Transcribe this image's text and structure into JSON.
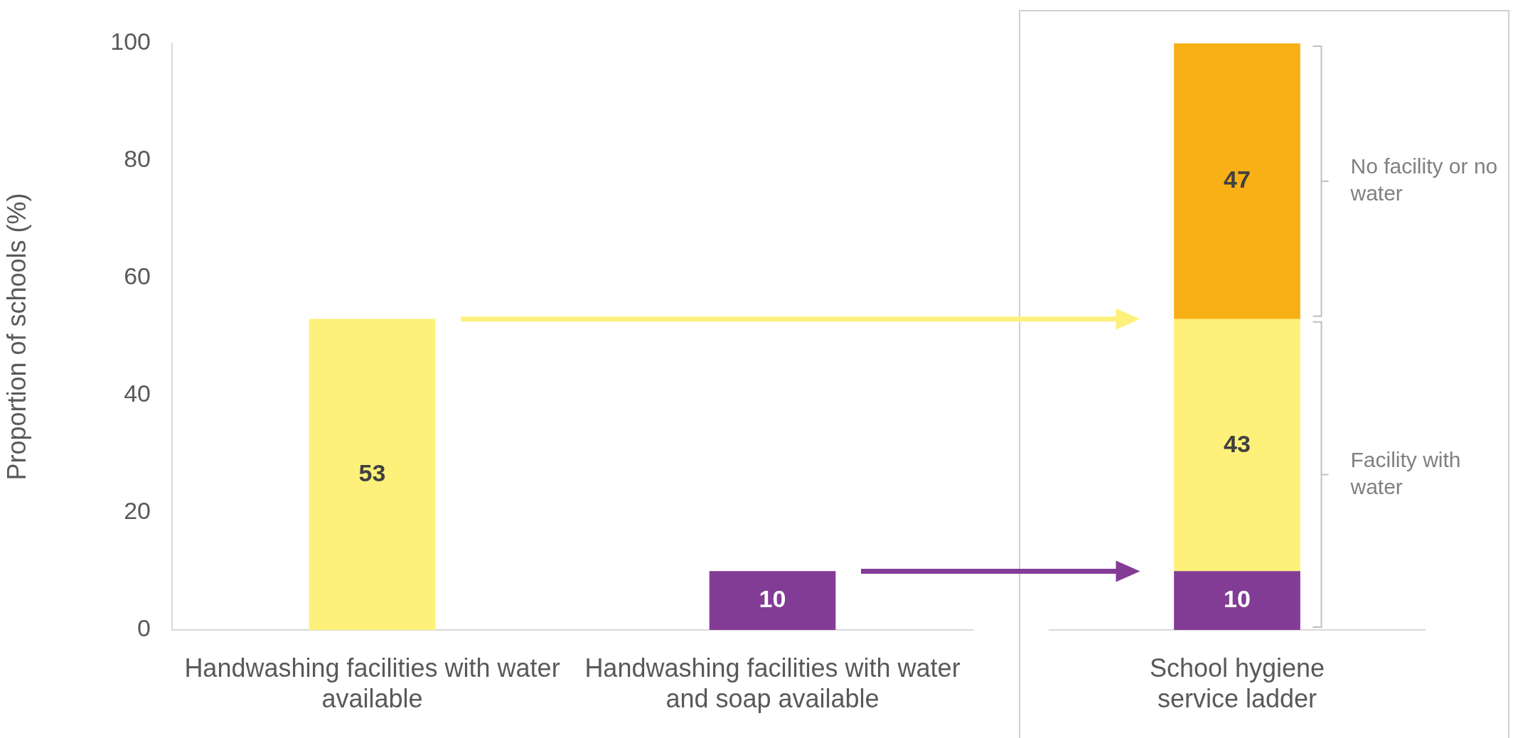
{
  "chart_data": [
    {
      "type": "bar",
      "ylabel": "Proportion of schools (%)",
      "categories": [
        "Handwashing facilities with water available",
        "Handwashing facilities with water and soap available"
      ],
      "values": [
        53,
        10
      ],
      "colors": [
        "#fef17b",
        "#833c96"
      ],
      "ylim": [
        0,
        100
      ],
      "yticks": [
        0,
        20,
        40,
        60,
        80,
        100
      ],
      "data_labels": true
    },
    {
      "type": "bar",
      "stacked": true,
      "categories": [
        "School hygiene service ladder"
      ],
      "series": [
        {
          "color": "#833c96",
          "values": [
            10
          ]
        },
        {
          "color": "#fef17b",
          "values": [
            43
          ]
        },
        {
          "color": "#f9b016",
          "values": [
            47
          ]
        }
      ],
      "ylim": [
        0,
        100
      ],
      "yticks": [
        0,
        20,
        40,
        60,
        80,
        100
      ],
      "tick_labels": "x",
      "data_labels": true,
      "annotations": [
        "No facility or no water",
        "Facility with water"
      ]
    }
  ]
}
